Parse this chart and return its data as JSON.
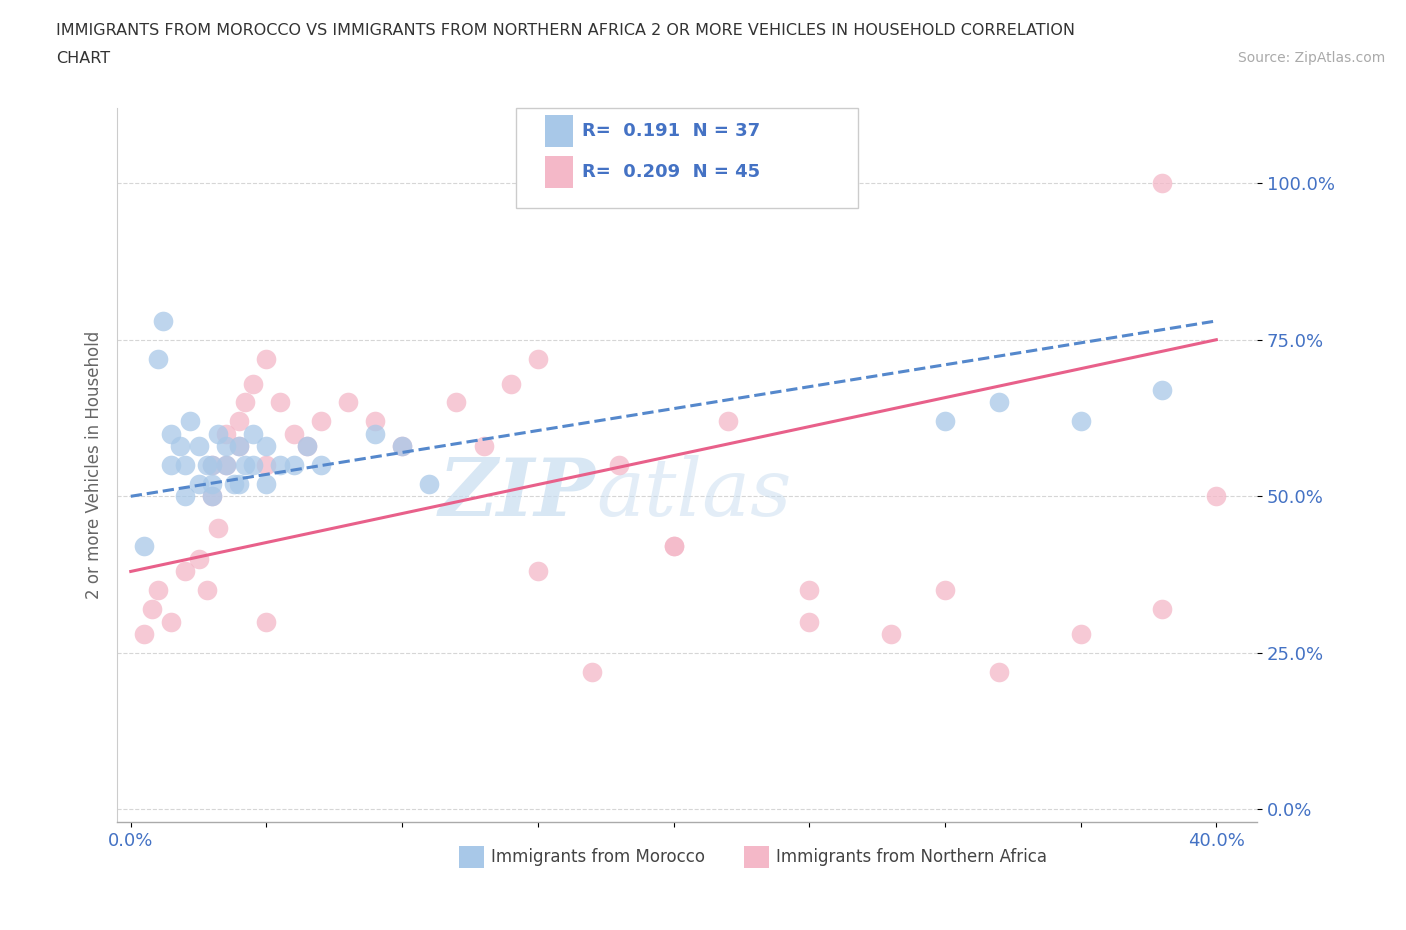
{
  "title_line1": "IMMIGRANTS FROM MOROCCO VS IMMIGRANTS FROM NORTHERN AFRICA 2 OR MORE VEHICLES IN HOUSEHOLD CORRELATION",
  "title_line2": "CHART",
  "source": "Source: ZipAtlas.com",
  "ylabel": "2 or more Vehicles in Household",
  "xlim": [
    -0.005,
    0.415
  ],
  "ylim": [
    -0.02,
    1.12
  ],
  "xticks": [
    0.0,
    0.05,
    0.1,
    0.15,
    0.2,
    0.25,
    0.3,
    0.35,
    0.4
  ],
  "xtick_labels": [
    "0.0%",
    "",
    "",
    "",
    "",
    "",
    "",
    "",
    "40.0%"
  ],
  "yticks": [
    0.0,
    0.25,
    0.5,
    0.75,
    1.0
  ],
  "ytick_labels": [
    "0.0%",
    "25.0%",
    "50.0%",
    "75.0%",
    "100.0%"
  ],
  "color_blue": "#a8c8e8",
  "color_pink": "#f4b8c8",
  "color_blue_line": "#5588cc",
  "color_pink_line": "#e8608a",
  "color_tick": "#4472c4",
  "watermark_zip": "ZIP",
  "watermark_atlas": "atlas",
  "morocco_x": [
    0.005,
    0.01,
    0.012,
    0.015,
    0.015,
    0.018,
    0.02,
    0.02,
    0.022,
    0.025,
    0.025,
    0.028,
    0.03,
    0.03,
    0.03,
    0.032,
    0.035,
    0.035,
    0.038,
    0.04,
    0.04,
    0.042,
    0.045,
    0.045,
    0.05,
    0.05,
    0.055,
    0.06,
    0.065,
    0.07,
    0.09,
    0.1,
    0.11,
    0.3,
    0.32,
    0.35,
    0.38
  ],
  "morocco_y": [
    0.42,
    0.72,
    0.78,
    0.6,
    0.55,
    0.58,
    0.5,
    0.55,
    0.62,
    0.58,
    0.52,
    0.55,
    0.5,
    0.52,
    0.55,
    0.6,
    0.55,
    0.58,
    0.52,
    0.58,
    0.52,
    0.55,
    0.55,
    0.6,
    0.52,
    0.58,
    0.55,
    0.55,
    0.58,
    0.55,
    0.6,
    0.58,
    0.52,
    0.62,
    0.65,
    0.62,
    0.67
  ],
  "northern_x": [
    0.005,
    0.008,
    0.01,
    0.015,
    0.02,
    0.025,
    0.028,
    0.03,
    0.03,
    0.032,
    0.035,
    0.035,
    0.04,
    0.04,
    0.042,
    0.045,
    0.05,
    0.05,
    0.055,
    0.06,
    0.065,
    0.07,
    0.08,
    0.09,
    0.1,
    0.12,
    0.13,
    0.14,
    0.15,
    0.18,
    0.2,
    0.22,
    0.25,
    0.28,
    0.3,
    0.32,
    0.35,
    0.25,
    0.38,
    0.05,
    0.15,
    0.17,
    0.2,
    0.38,
    0.4
  ],
  "northern_y": [
    0.28,
    0.32,
    0.35,
    0.3,
    0.38,
    0.4,
    0.35,
    0.55,
    0.5,
    0.45,
    0.6,
    0.55,
    0.58,
    0.62,
    0.65,
    0.68,
    0.72,
    0.55,
    0.65,
    0.6,
    0.58,
    0.62,
    0.65,
    0.62,
    0.58,
    0.65,
    0.58,
    0.68,
    0.72,
    0.55,
    0.42,
    0.62,
    0.35,
    0.28,
    0.35,
    0.22,
    0.28,
    0.3,
    0.32,
    0.3,
    0.38,
    0.22,
    0.42,
    1.0,
    0.5
  ]
}
